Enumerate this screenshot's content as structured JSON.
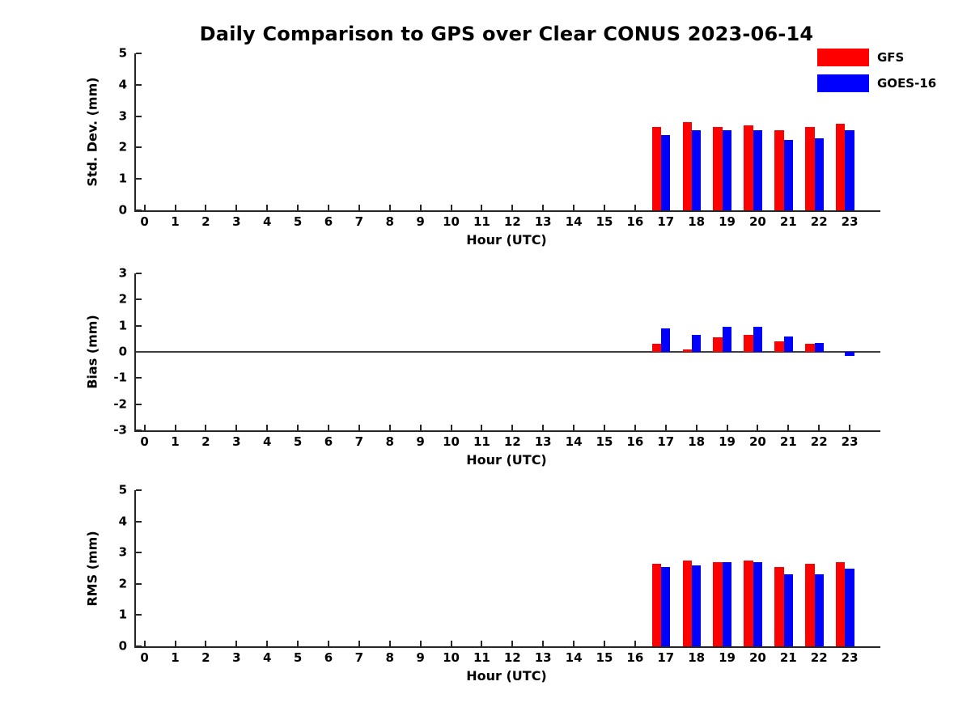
{
  "figure": {
    "background": "#ffffff",
    "axis_color": "#262626"
  },
  "chart_data": [
    {
      "type": "bar",
      "title": "Daily Comparison to GPS over Clear CONUS 2023-06-14",
      "xlabel": "Hour (UTC)",
      "ylabel": "Std. Dev. (mm)",
      "x": [
        0,
        1,
        2,
        3,
        4,
        5,
        6,
        7,
        8,
        9,
        10,
        11,
        12,
        13,
        14,
        15,
        16,
        17,
        18,
        19,
        20,
        21,
        22,
        23
      ],
      "xticks": [
        0,
        1,
        2,
        3,
        4,
        5,
        6,
        7,
        8,
        9,
        10,
        11,
        12,
        13,
        14,
        15,
        16,
        17,
        18,
        19,
        20,
        21,
        22,
        23
      ],
      "yticks": [
        0,
        1,
        2,
        3,
        4,
        5
      ],
      "xlim": [
        -0.28,
        24.0
      ],
      "ylim": [
        0,
        5
      ],
      "grid": false,
      "legend_position": "top-right-outside",
      "zero_line": false,
      "series": [
        {
          "name": "GFS",
          "color": "#ff0000",
          "values": [
            null,
            null,
            null,
            null,
            null,
            null,
            null,
            null,
            null,
            null,
            null,
            null,
            null,
            null,
            null,
            null,
            null,
            2.65,
            2.8,
            2.65,
            2.7,
            2.55,
            2.65,
            2.75
          ]
        },
        {
          "name": "GOES-16",
          "color": "#0000ff",
          "values": [
            null,
            null,
            null,
            null,
            null,
            null,
            null,
            null,
            null,
            null,
            null,
            null,
            null,
            null,
            null,
            null,
            null,
            2.4,
            2.55,
            2.55,
            2.55,
            2.25,
            2.3,
            2.55
          ]
        }
      ]
    },
    {
      "type": "bar",
      "title": "",
      "xlabel": "Hour (UTC)",
      "ylabel": "Bias (mm)",
      "x": [
        0,
        1,
        2,
        3,
        4,
        5,
        6,
        7,
        8,
        9,
        10,
        11,
        12,
        13,
        14,
        15,
        16,
        17,
        18,
        19,
        20,
        21,
        22,
        23
      ],
      "xticks": [
        0,
        1,
        2,
        3,
        4,
        5,
        6,
        7,
        8,
        9,
        10,
        11,
        12,
        13,
        14,
        15,
        16,
        17,
        18,
        19,
        20,
        21,
        22,
        23
      ],
      "yticks": [
        -3,
        -2,
        -1,
        0,
        1,
        2,
        3
      ],
      "xlim": [
        -0.28,
        24.0
      ],
      "ylim": [
        -3,
        3
      ],
      "grid": false,
      "zero_line": true,
      "series": [
        {
          "name": "GFS",
          "color": "#ff0000",
          "values": [
            null,
            null,
            null,
            null,
            null,
            null,
            null,
            null,
            null,
            null,
            null,
            null,
            null,
            null,
            null,
            null,
            null,
            0.3,
            0.1,
            0.55,
            0.65,
            0.4,
            0.3,
            0.0
          ]
        },
        {
          "name": "GOES-16",
          "color": "#0000ff",
          "values": [
            null,
            null,
            null,
            null,
            null,
            null,
            null,
            null,
            null,
            null,
            null,
            null,
            null,
            null,
            null,
            null,
            null,
            0.9,
            0.65,
            0.95,
            0.95,
            0.6,
            0.35,
            -0.15
          ]
        }
      ]
    },
    {
      "type": "bar",
      "title": "",
      "xlabel": "Hour (UTC)",
      "ylabel": "RMS (mm)",
      "x": [
        0,
        1,
        2,
        3,
        4,
        5,
        6,
        7,
        8,
        9,
        10,
        11,
        12,
        13,
        14,
        15,
        16,
        17,
        18,
        19,
        20,
        21,
        22,
        23
      ],
      "xticks": [
        0,
        1,
        2,
        3,
        4,
        5,
        6,
        7,
        8,
        9,
        10,
        11,
        12,
        13,
        14,
        15,
        16,
        17,
        18,
        19,
        20,
        21,
        22,
        23
      ],
      "yticks": [
        0,
        1,
        2,
        3,
        4,
        5
      ],
      "xlim": [
        -0.28,
        24.0
      ],
      "ylim": [
        0,
        5
      ],
      "grid": false,
      "zero_line": false,
      "series": [
        {
          "name": "GFS",
          "color": "#ff0000",
          "values": [
            null,
            null,
            null,
            null,
            null,
            null,
            null,
            null,
            null,
            null,
            null,
            null,
            null,
            null,
            null,
            null,
            null,
            2.65,
            2.75,
            2.7,
            2.75,
            2.55,
            2.65,
            2.7
          ]
        },
        {
          "name": "GOES-16",
          "color": "#0000ff",
          "values": [
            null,
            null,
            null,
            null,
            null,
            null,
            null,
            null,
            null,
            null,
            null,
            null,
            null,
            null,
            null,
            null,
            null,
            2.55,
            2.6,
            2.7,
            2.7,
            2.3,
            2.3,
            2.5
          ]
        }
      ]
    }
  ]
}
